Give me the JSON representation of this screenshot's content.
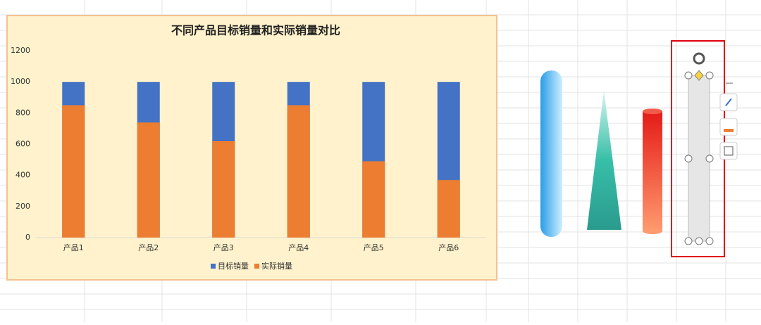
{
  "chart_data": {
    "type": "bar",
    "title": "不同产品目标销量和实际销量对比",
    "categories": [
      "产品1",
      "产品2",
      "产品3",
      "产品4",
      "产品5",
      "产品6"
    ],
    "series": [
      {
        "name": "目标销量",
        "color": "#4472c4",
        "values": [
          1000,
          1000,
          1000,
          1000,
          1000,
          1000
        ]
      },
      {
        "name": "实际销量",
        "color": "#ed7d31",
        "values": [
          850,
          740,
          620,
          850,
          490,
          370
        ]
      }
    ],
    "ylim": [
      0,
      1200
    ],
    "yticks": [
      0,
      200,
      400,
      600,
      800,
      1000,
      1200
    ],
    "grid": false,
    "legend": "bottom"
  }
}
